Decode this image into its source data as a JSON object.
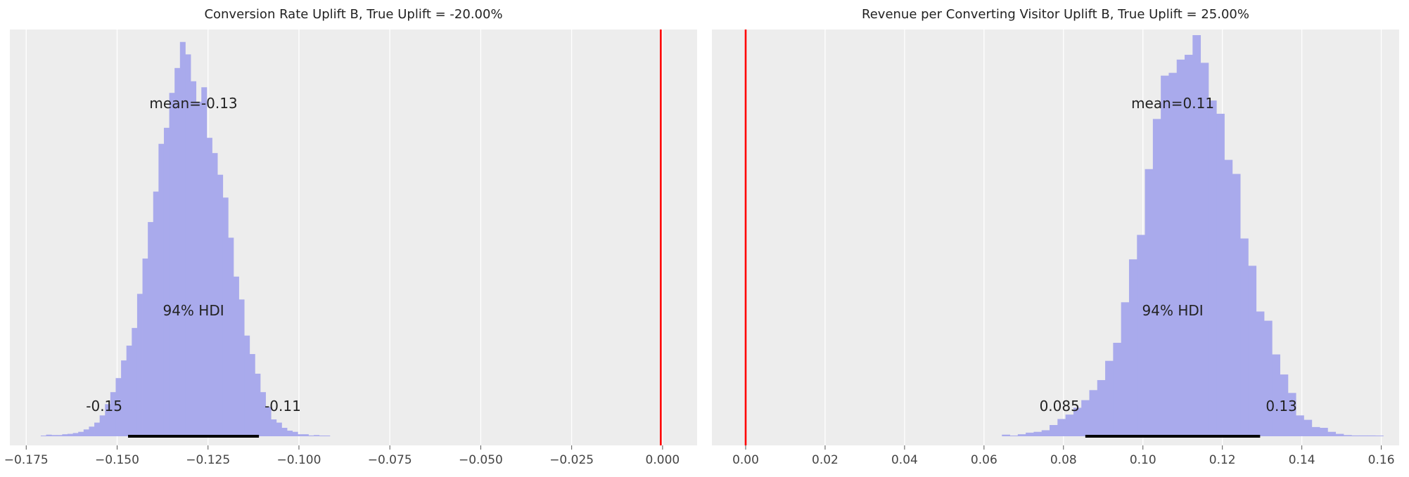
{
  "chart_data": [
    {
      "type": "histogram",
      "title": "Conversion Rate Uplift B, True Uplift = -20.00%",
      "xlim": [
        -0.1795,
        0.0095
      ],
      "xticks": [
        -0.175,
        -0.15,
        -0.125,
        -0.1,
        -0.075,
        -0.05,
        -0.025,
        0.0
      ],
      "xtick_labels": [
        "−0.175",
        "−0.150",
        "−0.125",
        "−0.100",
        "−0.075",
        "−0.050",
        "−0.025",
        "0.000"
      ],
      "true_uplift_line": -0.0005,
      "bin_range": [
        -0.171,
        -0.0915
      ],
      "bin_heights": [
        0.001,
        0.004,
        0.003,
        0.003,
        0.005,
        0.006,
        0.008,
        0.011,
        0.017,
        0.024,
        0.034,
        0.052,
        0.08,
        0.11,
        0.145,
        0.189,
        0.226,
        0.27,
        0.355,
        0.443,
        0.534,
        0.61,
        0.729,
        0.769,
        0.856,
        0.918,
        0.983,
        0.952,
        0.885,
        0.834,
        0.87,
        0.744,
        0.706,
        0.652,
        0.595,
        0.495,
        0.398,
        0.341,
        0.251,
        0.205,
        0.156,
        0.11,
        0.073,
        0.042,
        0.034,
        0.021,
        0.014,
        0.011,
        0.005,
        0.005,
        0.002,
        0.003,
        0.001,
        0.001
      ],
      "mean_label": "mean=-0.13",
      "hdi_label": "94% HDI",
      "hdi": [
        -0.147,
        -0.111
      ],
      "hdi_low_label": "-0.15",
      "hdi_high_label": "-0.11",
      "grid": true,
      "colors": {
        "bars": "#a9aaec",
        "true_line": "#ff0000",
        "hdi": "#000000",
        "background": "#ededed",
        "grid": "#ffffff"
      }
    },
    {
      "type": "histogram",
      "title": "Revenue per Converting Visitor Uplift B, True Uplift = 25.00%",
      "xlim": [
        -0.0085,
        0.1645
      ],
      "xticks": [
        0.0,
        0.02,
        0.04,
        0.06,
        0.08,
        0.1,
        0.12,
        0.14,
        0.16
      ],
      "xtick_labels": [
        "0.00",
        "0.02",
        "0.04",
        "0.06",
        "0.08",
        "0.10",
        "0.12",
        "0.14",
        "0.16"
      ],
      "true_uplift_line": 0.0,
      "bin_range": [
        0.0645,
        0.1605
      ],
      "bin_heights": [
        0.004,
        0.001,
        0.005,
        0.009,
        0.011,
        0.015,
        0.028,
        0.043,
        0.054,
        0.071,
        0.09,
        0.115,
        0.14,
        0.188,
        0.233,
        0.334,
        0.441,
        0.502,
        0.666,
        0.791,
        0.899,
        0.906,
        0.939,
        0.951,
        1.0,
        0.931,
        0.837,
        0.804,
        0.689,
        0.654,
        0.493,
        0.425,
        0.311,
        0.288,
        0.204,
        0.154,
        0.108,
        0.052,
        0.041,
        0.023,
        0.021,
        0.011,
        0.006,
        0.003,
        0.002,
        0.002,
        0.002,
        0.001
      ],
      "mean_label": "mean=0.11",
      "hdi_label": "94% HDI",
      "hdi": [
        0.0855,
        0.1295
      ],
      "hdi_low_label": "0.085",
      "hdi_high_label": "0.13",
      "grid": true,
      "colors": {
        "bars": "#a9aaec",
        "true_line": "#ff0000",
        "hdi": "#000000",
        "background": "#ededed",
        "grid": "#ffffff"
      }
    }
  ]
}
